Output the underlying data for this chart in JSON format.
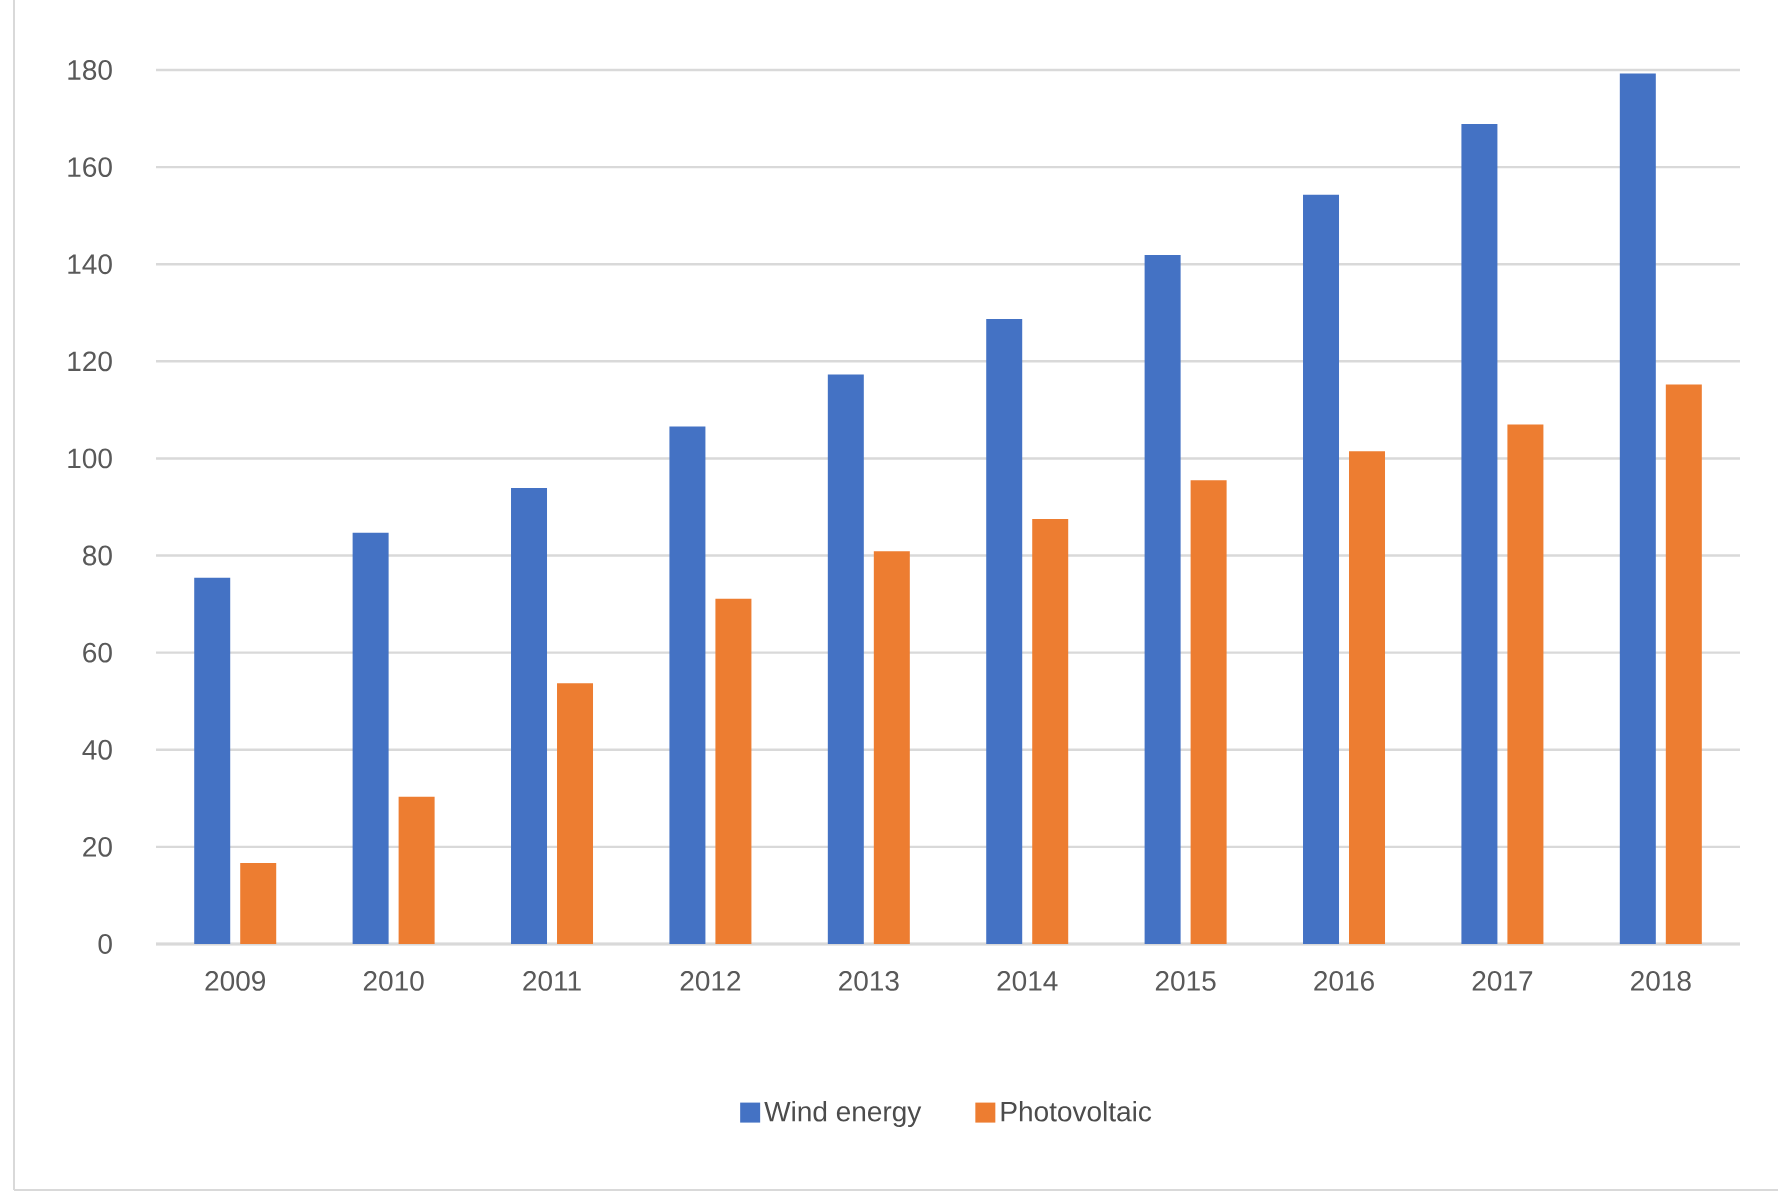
{
  "chart_data": {
    "type": "bar",
    "categories": [
      "2009",
      "2010",
      "2011",
      "2012",
      "2013",
      "2014",
      "2015",
      "2016",
      "2017",
      "2018"
    ],
    "series": [
      {
        "name": "Wind energy",
        "color": "#4472c4",
        "values": [
          75.4,
          84.7,
          93.9,
          106.6,
          117.3,
          128.7,
          141.9,
          154.3,
          168.9,
          179.3
        ]
      },
      {
        "name": "Photovoltaic",
        "color": "#ed7d31",
        "values": [
          16.7,
          30.3,
          53.7,
          71.1,
          80.9,
          87.5,
          95.5,
          101.5,
          107.0,
          115.2
        ]
      }
    ],
    "ylim": [
      0,
      180
    ],
    "yticks": [
      0,
      20,
      40,
      60,
      80,
      100,
      120,
      140,
      160,
      180
    ],
    "grid": "y",
    "legend": "bottom"
  }
}
